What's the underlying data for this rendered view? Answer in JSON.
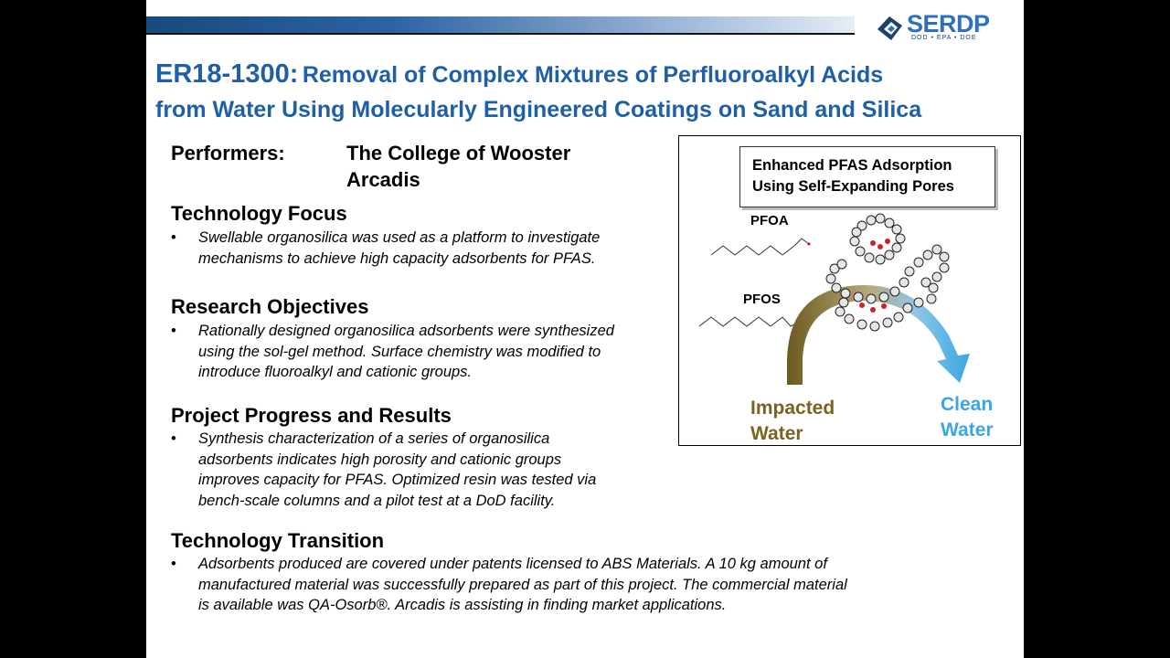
{
  "header": {
    "logo_text": "SERDP",
    "logo_sub": "DOD • EPA • DOE"
  },
  "title": {
    "number": "ER18-1300:",
    "text_line1": "Removal of Complex Mixtures of Perfluoroalkyl Acids",
    "text_line2": "from Water Using Molecularly Engineered Coatings on Sand and Silica"
  },
  "performers": {
    "label": "Performers:",
    "names": [
      "The College of Wooster",
      "Arcadis"
    ]
  },
  "sections": [
    {
      "heading": "Technology Focus",
      "lines": [
        "Swellable organosilica was used as a platform to investigate",
        "mechanisms to achieve high capacity adsorbents for PFAS."
      ]
    },
    {
      "heading": "Research Objectives",
      "lines": [
        "Rationally designed organosilica adsorbents were synthesized",
        "using the sol-gel method. Surface chemistry was modified to",
        "introduce fluoroalkyl and cationic groups."
      ]
    },
    {
      "heading": "Project Progress and Results",
      "lines": [
        "Synthesis characterization of a series of organosilica",
        "adsorbents indicates high porosity and cationic groups",
        "improves capacity for PFAS. Optimized resin was tested via",
        "bench-scale columns and a pilot test at a DoD facility."
      ]
    },
    {
      "heading": "Technology Transition",
      "lines": [
        "Adsorbents produced are covered under patents licensed to ABS Materials. A 10 kg amount of",
        "manufactured material was successfully prepared as part of this project. The commercial material",
        "is available was QA-Osorb®. Arcadis is assisting in finding market applications."
      ]
    }
  ],
  "bullet_char": "•",
  "figure": {
    "box_line1": "Enhanced PFAS Adsorption",
    "box_line2": "Using Self-Expanding Pores",
    "pfoa": "PFOA",
    "pfos": "PFOS",
    "impacted_line1": "Impacted",
    "impacted_line2": "Water",
    "clean_line1": "Clean",
    "clean_line2": "Water",
    "impacted_color": "#7a6320",
    "clean_color": "#3aa6e2"
  }
}
